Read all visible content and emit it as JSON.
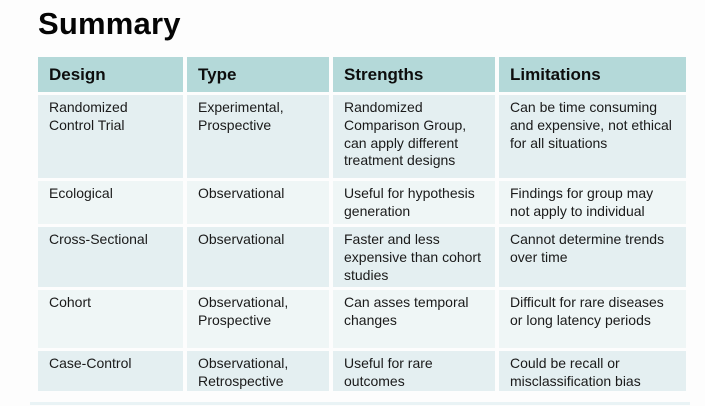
{
  "slide": {
    "title": "Summary"
  },
  "table": {
    "headers": [
      "Design",
      "Type",
      "Strengths",
      "Limitations"
    ],
    "rows": [
      {
        "design": "Randomized Control Trial",
        "type": "Experimental, Prospective",
        "strengths": "Randomized Comparison Group, can apply different treatment designs",
        "limitations": "Can be time consuming and expensive, not ethical for all situations"
      },
      {
        "design": "Ecological",
        "type": "Observational",
        "strengths": "Useful for hypothesis generation",
        "limitations": "Findings for group may not apply to individual"
      },
      {
        "design": "Cross-Sectional",
        "type": "Observational",
        "strengths": "Faster and less expensive than cohort studies",
        "limitations": "Cannot determine trends over time"
      },
      {
        "design": "Cohort",
        "type": "Observational, Prospective",
        "strengths": "Can asses temporal changes",
        "limitations": "Difficult for rare diseases or long latency periods"
      },
      {
        "design": "Case-Control",
        "type": "Observational, Retrospective",
        "strengths": "Useful for rare outcomes",
        "limitations": "Could be recall or misclassification bias"
      }
    ]
  },
  "colors": {
    "header_bg": "#b4d9d9",
    "row_odd_bg": "#e4eff1",
    "row_even_bg": "#eff6f6",
    "title_color": "#050505",
    "body_text": "#1a1a1a",
    "background": "#fdfdfd"
  }
}
